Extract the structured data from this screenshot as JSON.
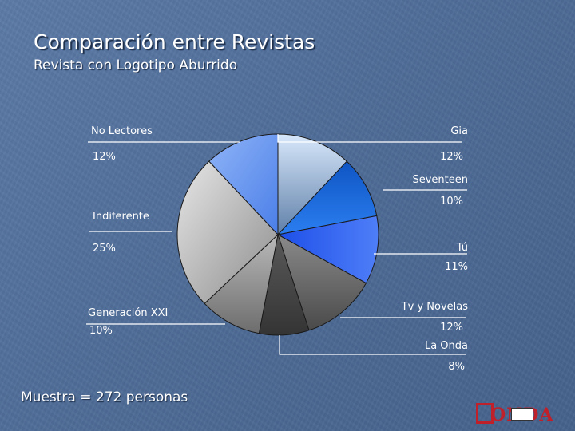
{
  "slide": {
    "title": "Comparación entre Revistas",
    "subtitle": "Revista con Logotipo Aburrido",
    "footer": "Muestra = 272 personas"
  },
  "logo": {
    "text": "ONDA"
  },
  "chart_data": {
    "type": "pie",
    "title": "Comparación entre Revistas",
    "subtitle": "Revista con Logotipo Aburrido",
    "slices": [
      {
        "name": "Gia",
        "value": 12,
        "label": "12%",
        "color": "#a7c6ec"
      },
      {
        "name": "Seventeen",
        "value": 10,
        "label": "10%",
        "color": "#1560d0"
      },
      {
        "name": "Tú",
        "value": 11,
        "label": "11%",
        "color": "#3064f2"
      },
      {
        "name": "Tv y Novelas",
        "value": 12,
        "label": "12%",
        "color": "#6f6f6f"
      },
      {
        "name": "La Onda",
        "value": 8,
        "label": "8%",
        "color": "#4b4b4b"
      },
      {
        "name": "Generación XXI",
        "value": 10,
        "label": "10%",
        "color": "#909090"
      },
      {
        "name": "Indiferente",
        "value": 25,
        "label": "25%",
        "color": "#b8b8b8"
      },
      {
        "name": "No Lectores",
        "value": 12,
        "label": "12%",
        "color": "#6d9af2"
      }
    ]
  }
}
